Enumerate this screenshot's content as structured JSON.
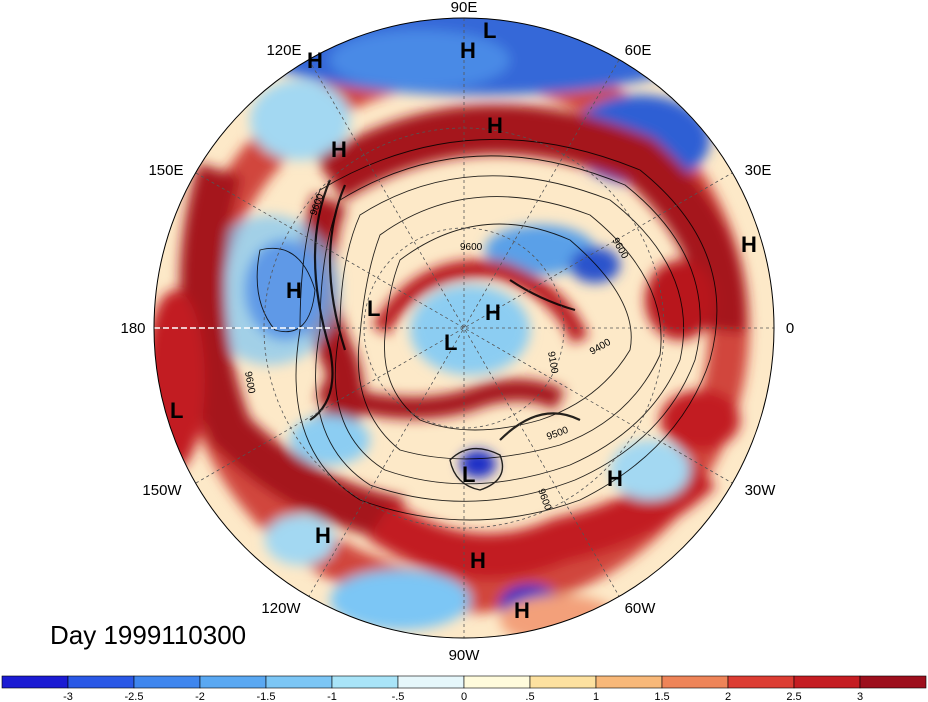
{
  "title": "Day 1999110300",
  "longitude_labels": [
    "90E",
    "60E",
    "30E",
    "0",
    "30W",
    "60W",
    "90W",
    "120W",
    "150W",
    "180",
    "150E",
    "120E"
  ],
  "pressure_centers": [
    {
      "type": "H",
      "lon": "90E"
    },
    {
      "type": "L",
      "lon": "80E"
    },
    {
      "type": "H",
      "lon": "120E"
    },
    {
      "type": "H",
      "lon": "125E"
    },
    {
      "type": "H",
      "lon": "85E"
    },
    {
      "type": "H",
      "lon": "10E"
    },
    {
      "type": "H",
      "lon": "170E"
    },
    {
      "type": "L",
      "lon": "150E"
    },
    {
      "type": "H",
      "lon": "45E"
    },
    {
      "type": "L",
      "lon": "120W"
    },
    {
      "type": "L",
      "lon": "160W"
    },
    {
      "type": "L",
      "lon": "95W"
    },
    {
      "type": "H",
      "lon": "40W"
    },
    {
      "type": "H",
      "lon": "130W"
    },
    {
      "type": "H",
      "lon": "85W"
    },
    {
      "type": "H",
      "lon": "75W"
    }
  ],
  "contour_labels": [
    "9600",
    "9600",
    "9600",
    "9400",
    "9500",
    "9600",
    "9100",
    "9600"
  ],
  "colorbar": {
    "ticks": [
      "-3",
      "-2.5",
      "-2",
      "-1.5",
      "-1",
      "-.5",
      "0",
      ".5",
      "1",
      "1.5",
      "2",
      "2.5",
      "3"
    ],
    "colors": [
      "#1b1bd3",
      "#2a58e6",
      "#3f86ee",
      "#5aa8f2",
      "#7cc6f5",
      "#a9e4f8",
      "#e6f7fb",
      "#fffbdc",
      "#fde1a0",
      "#f8b879",
      "#ee8458",
      "#dc3d33",
      "#c51d22",
      "#9d0f1c"
    ]
  },
  "colors": {
    "deep_red": "#a5121f",
    "red": "#d7352b",
    "orange": "#f3a07a",
    "cream": "#fff3d6",
    "light_blue": "#a3d8f2",
    "blue": "#3f7fdc",
    "deep_blue": "#1d2fc6"
  }
}
